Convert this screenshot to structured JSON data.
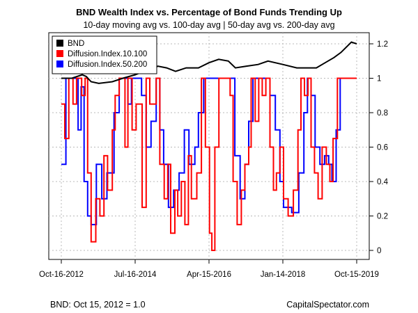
{
  "footer": {
    "left": "BND: Oct 15, 2012 = 1.0",
    "right": "CapitalSpectator.com"
  },
  "chart_data": {
    "type": "line",
    "title": "BND Wealth Index vs. Percentage of Bond Funds Trending Up",
    "subtitle": "10-day moving avg vs. 100-day avg | 50-day avg vs. 200-day avg",
    "xlabel": "",
    "ylabel": "",
    "ylim": [
      0,
      1.25
    ],
    "yticks": [
      "0",
      "0.2",
      "0.4",
      "0.6",
      "0.8",
      "1",
      "1.2"
    ],
    "xticks": [
      "Oct-16-2012",
      "Jul-16-2014",
      "Apr-15-2016",
      "Jan-14-2018",
      "Oct-15-2019"
    ],
    "xrange": [
      "2012-10-16",
      "2019-10-15"
    ],
    "grid": true,
    "legend_position": "top-left",
    "series": [
      {
        "name": "BND",
        "color": "#000000",
        "points": [
          [
            "2012-10-16",
            1.0
          ],
          [
            "2013-01-15",
            1.0
          ],
          [
            "2013-04-15",
            1.02
          ],
          [
            "2013-05-20",
            1.01
          ],
          [
            "2013-07-01",
            0.98
          ],
          [
            "2013-09-05",
            0.97
          ],
          [
            "2013-12-31",
            0.98
          ],
          [
            "2014-04-01",
            1.0
          ],
          [
            "2014-07-16",
            1.02
          ],
          [
            "2014-10-01",
            1.04
          ],
          [
            "2015-01-30",
            1.07
          ],
          [
            "2015-04-15",
            1.06
          ],
          [
            "2015-07-01",
            1.04
          ],
          [
            "2015-10-01",
            1.06
          ],
          [
            "2016-01-15",
            1.06
          ],
          [
            "2016-04-15",
            1.09
          ],
          [
            "2016-07-08",
            1.11
          ],
          [
            "2016-09-30",
            1.1
          ],
          [
            "2016-11-30",
            1.06
          ],
          [
            "2017-03-01",
            1.07
          ],
          [
            "2017-06-15",
            1.08
          ],
          [
            "2017-09-08",
            1.1
          ],
          [
            "2018-01-14",
            1.08
          ],
          [
            "2018-05-15",
            1.06
          ],
          [
            "2018-10-31",
            1.06
          ],
          [
            "2019-01-15",
            1.09
          ],
          [
            "2019-04-01",
            1.12
          ],
          [
            "2019-06-01",
            1.15
          ],
          [
            "2019-08-30",
            1.21
          ],
          [
            "2019-10-15",
            1.2
          ]
        ]
      },
      {
        "name": "Diffusion.Index.10.100",
        "color": "#ff0000",
        "points": [
          [
            "2012-10-16",
            0.85
          ],
          [
            "2012-11-15",
            0.65
          ],
          [
            "2012-12-20",
            1.0
          ],
          [
            "2013-01-25",
            0.85
          ],
          [
            "2013-02-25",
            1.0
          ],
          [
            "2013-04-10",
            0.9
          ],
          [
            "2013-05-10",
            1.0
          ],
          [
            "2013-06-01",
            0.45
          ],
          [
            "2013-07-01",
            0.05
          ],
          [
            "2013-08-10",
            0.3
          ],
          [
            "2013-09-15",
            0.2
          ],
          [
            "2013-10-20",
            0.55
          ],
          [
            "2013-11-20",
            0.35
          ],
          [
            "2013-12-31",
            0.7
          ],
          [
            "2014-01-25",
            0.9
          ],
          [
            "2014-03-01",
            1.0
          ],
          [
            "2014-04-20",
            0.6
          ],
          [
            "2014-05-15",
            1.0
          ],
          [
            "2014-06-20",
            0.7
          ],
          [
            "2014-07-25",
            0.85
          ],
          [
            "2014-09-15",
            0.25
          ],
          [
            "2014-10-20",
            1.0
          ],
          [
            "2014-11-20",
            0.85
          ],
          [
            "2015-01-15",
            1.0
          ],
          [
            "2015-02-15",
            0.5
          ],
          [
            "2015-03-25",
            0.3
          ],
          [
            "2015-04-25",
            0.5
          ],
          [
            "2015-05-20",
            0.1
          ],
          [
            "2015-06-25",
            0.35
          ],
          [
            "2015-07-20",
            0.2
          ],
          [
            "2015-08-20",
            0.4
          ],
          [
            "2015-09-20",
            0.15
          ],
          [
            "2015-10-20",
            0.55
          ],
          [
            "2015-11-15",
            0.3
          ],
          [
            "2016-01-01",
            0.45
          ],
          [
            "2016-02-10",
            1.0
          ],
          [
            "2016-03-15",
            0.6
          ],
          [
            "2016-04-20",
            0.1
          ],
          [
            "2016-05-10",
            0.0
          ],
          [
            "2016-06-05",
            0.6
          ],
          [
            "2016-07-10",
            1.0
          ],
          [
            "2016-09-01",
            1.0
          ],
          [
            "2016-10-15",
            0.9
          ],
          [
            "2016-11-10",
            0.4
          ],
          [
            "2016-12-15",
            0.15
          ],
          [
            "2017-01-20",
            0.35
          ],
          [
            "2017-02-20",
            0.5
          ],
          [
            "2017-03-25",
            0.6
          ],
          [
            "2017-04-15",
            1.0
          ],
          [
            "2017-05-20",
            0.75
          ],
          [
            "2017-06-20",
            1.0
          ],
          [
            "2017-07-20",
            0.9
          ],
          [
            "2017-08-20",
            1.0
          ],
          [
            "2017-09-25",
            0.6
          ],
          [
            "2017-10-25",
            0.35
          ],
          [
            "2017-11-20",
            0.45
          ],
          [
            "2017-12-20",
            0.6
          ],
          [
            "2018-01-20",
            0.3
          ],
          [
            "2018-03-01",
            0.2
          ],
          [
            "2018-04-15",
            0.35
          ],
          [
            "2018-05-25",
            0.7
          ],
          [
            "2018-06-20",
            1.0
          ],
          [
            "2018-07-20",
            0.9
          ],
          [
            "2018-08-20",
            1.0
          ],
          [
            "2018-09-15",
            0.6
          ],
          [
            "2018-10-15",
            0.45
          ],
          [
            "2018-11-15",
            0.3
          ],
          [
            "2018-12-20",
            0.6
          ],
          [
            "2019-01-25",
            0.5
          ],
          [
            "2019-02-25",
            0.4
          ],
          [
            "2019-03-25",
            0.65
          ],
          [
            "2019-05-01",
            1.0
          ],
          [
            "2019-10-15",
            1.0
          ]
        ]
      },
      {
        "name": "Diffusion.Index.50.200",
        "color": "#0000ff",
        "points": [
          [
            "2012-10-16",
            0.5
          ],
          [
            "2012-11-25",
            1.0
          ],
          [
            "2013-02-15",
            1.0
          ],
          [
            "2013-03-10",
            0.7
          ],
          [
            "2013-04-05",
            0.95
          ],
          [
            "2013-05-01",
            0.4
          ],
          [
            "2013-06-01",
            0.2
          ],
          [
            "2013-07-01",
            0.15
          ],
          [
            "2013-08-15",
            0.5
          ],
          [
            "2013-10-01",
            0.3
          ],
          [
            "2013-11-15",
            0.45
          ],
          [
            "2014-01-15",
            0.8
          ],
          [
            "2014-03-01",
            1.0
          ],
          [
            "2014-04-15",
            1.0
          ],
          [
            "2014-05-15",
            0.85
          ],
          [
            "2014-06-15",
            1.0
          ],
          [
            "2014-08-01",
            1.0
          ],
          [
            "2014-09-10",
            0.9
          ],
          [
            "2014-10-20",
            0.6
          ],
          [
            "2014-12-01",
            0.75
          ],
          [
            "2015-01-15",
            1.0
          ],
          [
            "2015-02-15",
            0.7
          ],
          [
            "2015-03-20",
            0.5
          ],
          [
            "2015-05-01",
            0.25
          ],
          [
            "2015-06-15",
            0.35
          ],
          [
            "2015-08-01",
            0.45
          ],
          [
            "2015-09-15",
            0.7
          ],
          [
            "2015-10-25",
            0.5
          ],
          [
            "2015-12-15",
            0.6
          ],
          [
            "2016-01-15",
            0.8
          ],
          [
            "2016-03-01",
            1.0
          ],
          [
            "2016-07-01",
            1.0
          ],
          [
            "2016-10-01",
            1.0
          ],
          [
            "2016-11-25",
            0.55
          ],
          [
            "2017-01-10",
            0.3
          ],
          [
            "2017-02-20",
            0.5
          ],
          [
            "2017-03-25",
            0.75
          ],
          [
            "2017-05-01",
            1.0
          ],
          [
            "2017-07-15",
            1.0
          ],
          [
            "2017-08-20",
            1.0
          ],
          [
            "2017-09-25",
            0.9
          ],
          [
            "2017-11-10",
            0.7
          ],
          [
            "2017-12-20",
            0.4
          ],
          [
            "2018-01-20",
            0.25
          ],
          [
            "2018-04-01",
            0.22
          ],
          [
            "2018-06-01",
            0.45
          ],
          [
            "2018-07-15",
            0.8
          ],
          [
            "2018-08-15",
            1.0
          ],
          [
            "2018-09-15",
            0.9
          ],
          [
            "2018-10-20",
            0.6
          ],
          [
            "2018-12-01",
            0.5
          ],
          [
            "2019-01-10",
            0.55
          ],
          [
            "2019-02-15",
            0.5
          ],
          [
            "2019-03-15",
            0.4
          ],
          [
            "2019-04-20",
            0.7
          ],
          [
            "2019-05-25",
            1.0
          ],
          [
            "2019-10-15",
            1.0
          ]
        ]
      }
    ]
  }
}
